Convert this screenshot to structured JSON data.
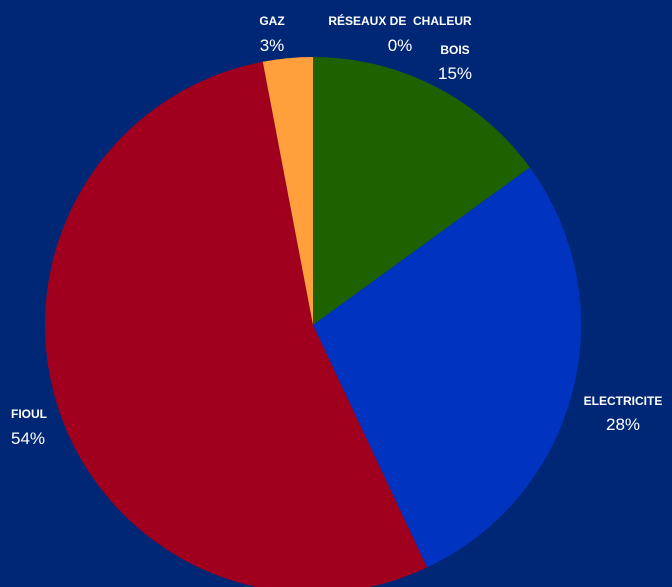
{
  "background_color": "#002776",
  "chart_data": {
    "type": "pie",
    "title": "",
    "start": "12 o'clock",
    "direction": "clockwise",
    "slices": [
      {
        "label": "BOIS",
        "value": 15,
        "value_label": "15%",
        "color": "#1e6100"
      },
      {
        "label": "ELECTRICITE",
        "value": 28,
        "value_label": "28%",
        "color": "#0033c0"
      },
      {
        "label": "FIOUL",
        "value": 54,
        "value_label": "54%",
        "color": "#a0001e"
      },
      {
        "label": "GAZ",
        "value": 3,
        "value_label": "3%",
        "color": "#ffa03c"
      },
      {
        "label": "RÉSEAUX DE  CHALEUR",
        "value": 0,
        "value_label": "0%",
        "color": "#b4b4b4"
      }
    ]
  }
}
